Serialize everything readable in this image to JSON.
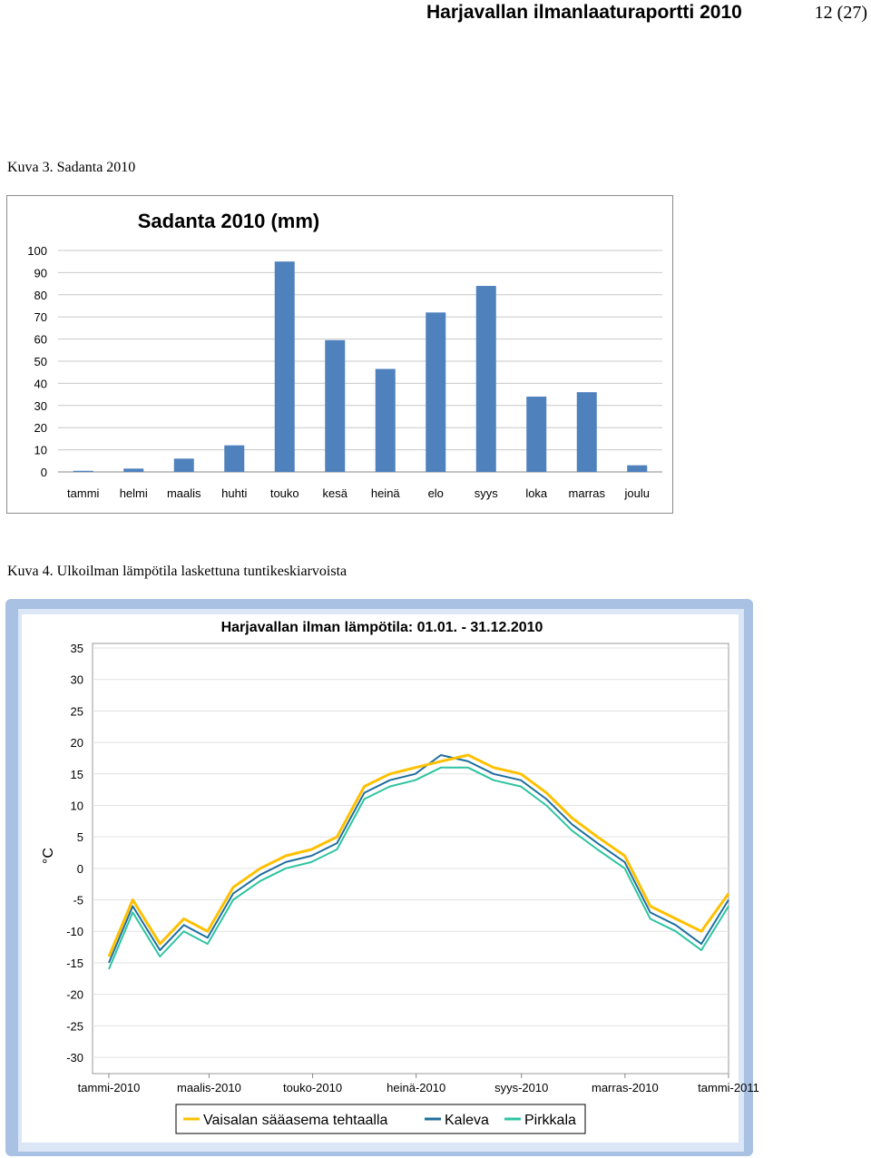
{
  "header": {
    "title": "Harjavallan ilmanlaaturaportti 2010",
    "page": "12 (27)"
  },
  "captions": {
    "fig3": "Kuva 3. Sadanta 2010",
    "fig4": "Kuva 4. Ulkoilman lämpötila laskettuna tuntikeskiarvoista"
  },
  "chart_data": [
    {
      "type": "bar",
      "title": "Sadanta 2010 (mm)",
      "categories": [
        "tammi",
        "helmi",
        "maalis",
        "huhti",
        "touko",
        "kesä",
        "heinä",
        "elo",
        "syys",
        "loka",
        "marras",
        "joulu"
      ],
      "values": [
        0.5,
        1.5,
        6,
        12,
        95,
        59.5,
        46.5,
        72,
        84,
        34,
        36,
        3
      ],
      "ylim": [
        0,
        100
      ],
      "yticks": [
        "0",
        "10",
        "20",
        "30",
        "40",
        "50",
        "60",
        "70",
        "80",
        "90",
        "100"
      ],
      "grid": true,
      "colors": {
        "bar": "#4f81bd"
      }
    },
    {
      "type": "line",
      "title": "Harjavallan ilman lämpötila: 01.01. - 31.12.2010",
      "ylabel": "°C",
      "ylim": [
        -30,
        35
      ],
      "yticks": [
        "35",
        "30",
        "25",
        "20",
        "15",
        "10",
        "5",
        "0",
        "-5",
        "-10",
        "-15",
        "-20",
        "-25",
        "-30"
      ],
      "x_ticks": [
        "tammi-2010",
        "maalis-2010",
        "touko-2010",
        "heinä-2010",
        "syys-2010",
        "marras-2010",
        "tammi-2011"
      ],
      "x": [
        1,
        15,
        31,
        45,
        59,
        74,
        90,
        105,
        120,
        135,
        151,
        166,
        181,
        196,
        212,
        227,
        243,
        258,
        273,
        288,
        304,
        319,
        334,
        349,
        365
      ],
      "series": [
        {
          "name": "Vaisalan sääasema tehtaalla",
          "color": "#ffc000",
          "values": [
            -14,
            -5,
            -12,
            -8,
            -10,
            -3,
            0,
            2,
            3,
            5,
            13,
            15,
            16,
            17,
            18,
            16,
            15,
            12,
            8,
            5,
            2,
            -6,
            -8,
            -10,
            -4
          ]
        },
        {
          "name": "Kaleva",
          "color": "#1f6f9f",
          "values": [
            -15,
            -6,
            -13,
            -9,
            -11,
            -4,
            -1,
            1,
            2,
            4,
            12,
            14,
            15,
            18,
            17,
            15,
            14,
            11,
            7,
            4,
            1,
            -7,
            -9,
            -12,
            -5
          ]
        },
        {
          "name": "Pirkkala",
          "color": "#2ec4a0",
          "values": [
            -16,
            -7,
            -14,
            -10,
            -12,
            -5,
            -2,
            0,
            1,
            3,
            11,
            13,
            14,
            16,
            16,
            14,
            13,
            10,
            6,
            3,
            0,
            -8,
            -10,
            -13,
            -6
          ]
        }
      ],
      "grid": true,
      "legend": "bottom"
    }
  ]
}
